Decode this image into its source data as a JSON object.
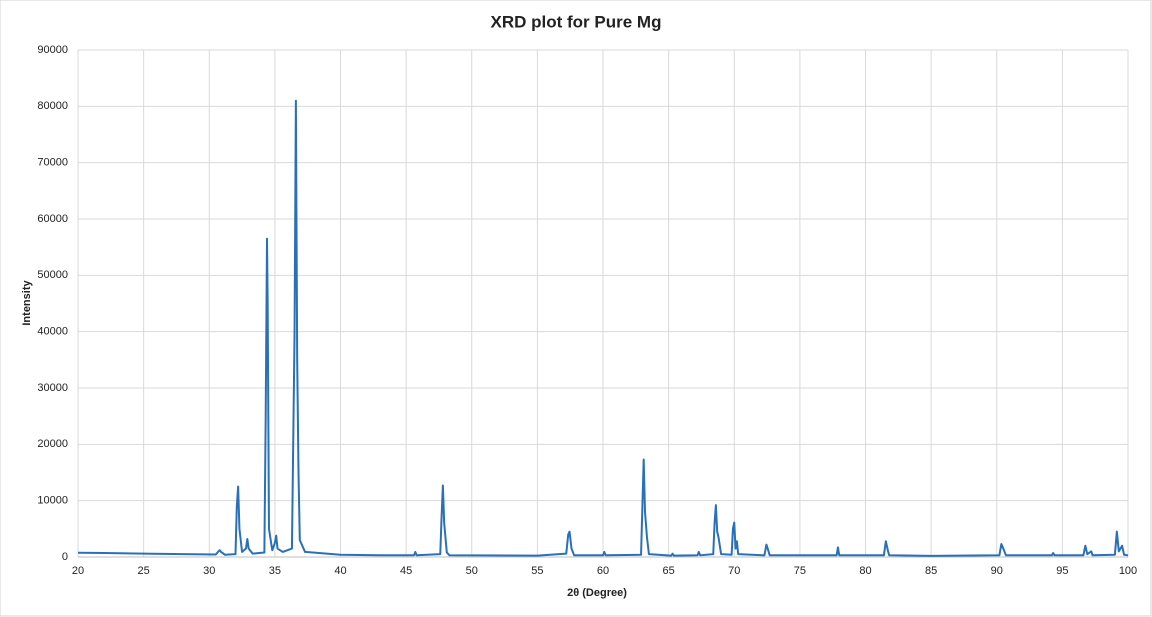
{
  "chart_data": {
    "type": "line",
    "title": "XRD plot for Pure Mg",
    "x_label": "2θ (Degree)",
    "y_label": "Intensity",
    "x": [
      20,
      22,
      25,
      28,
      30.5,
      30.7,
      30.8,
      30.9,
      31.2,
      32.0,
      32.1,
      32.2,
      32.3,
      32.5,
      32.8,
      32.9,
      33.0,
      33.3,
      34.2,
      34.3,
      34.4,
      34.45,
      34.55,
      34.8,
      35.0,
      35.1,
      35.2,
      35.6,
      36.3,
      36.5,
      36.6,
      36.7,
      36.8,
      36.9,
      37.3,
      40,
      43,
      45.6,
      45.7,
      45.8,
      47.6,
      47.7,
      47.8,
      47.9,
      48.1,
      48.3,
      55,
      57.2,
      57.35,
      57.45,
      57.6,
      57.8,
      60.0,
      60.1,
      60.2,
      62.9,
      63.0,
      63.1,
      63.2,
      63.35,
      63.5,
      65.2,
      65.3,
      65.4,
      67.2,
      67.3,
      67.4,
      68.4,
      68.5,
      68.6,
      68.7,
      68.8,
      69.0,
      69.8,
      69.9,
      70.0,
      70.1,
      70.2,
      70.3,
      72.3,
      72.45,
      72.55,
      72.7,
      77.8,
      77.9,
      78.0,
      81.4,
      81.55,
      81.7,
      81.8,
      85,
      90.2,
      90.35,
      90.5,
      90.7,
      94.2,
      94.3,
      94.4,
      96.6,
      96.75,
      96.9,
      97.2,
      97.3,
      99.0,
      99.15,
      99.3,
      99.55,
      99.7,
      100
    ],
    "series": [
      {
        "color": "#2a70b8",
        "values": [
          750,
          700,
          600,
          500,
          450,
          1000,
          1200,
          900,
          400,
          500,
          9000,
          12500,
          5000,
          900,
          1500,
          3200,
          1500,
          600,
          800,
          25000,
          56500,
          45000,
          5000,
          1200,
          2500,
          3800,
          1500,
          900,
          1500,
          40000,
          81000,
          35000,
          15000,
          3000,
          900,
          400,
          300,
          300,
          900,
          300,
          500,
          7000,
          12700,
          6000,
          800,
          300,
          250,
          600,
          4000,
          4500,
          1500,
          300,
          300,
          900,
          300,
          400,
          9000,
          17300,
          8000,
          3500,
          500,
          250,
          600,
          250,
          300,
          900,
          300,
          500,
          6000,
          9200,
          4500,
          3500,
          500,
          400,
          5000,
          6100,
          1500,
          2800,
          500,
          300,
          2200,
          1500,
          300,
          300,
          1700,
          300,
          300,
          2800,
          1200,
          300,
          200,
          300,
          2300,
          1500,
          300,
          300,
          700,
          300,
          300,
          2000,
          500,
          1000,
          300,
          400,
          4500,
          1000,
          2000,
          400,
          300
        ]
      }
    ],
    "xlim": [
      20,
      100
    ],
    "ylim": [
      0,
      90000
    ],
    "xticks": [
      20,
      25,
      30,
      35,
      40,
      45,
      50,
      55,
      60,
      65,
      70,
      75,
      80,
      85,
      90,
      95,
      100
    ],
    "yticks": [
      0,
      10000,
      20000,
      30000,
      40000,
      50000,
      60000,
      70000,
      80000,
      90000
    ],
    "grid": true
  }
}
